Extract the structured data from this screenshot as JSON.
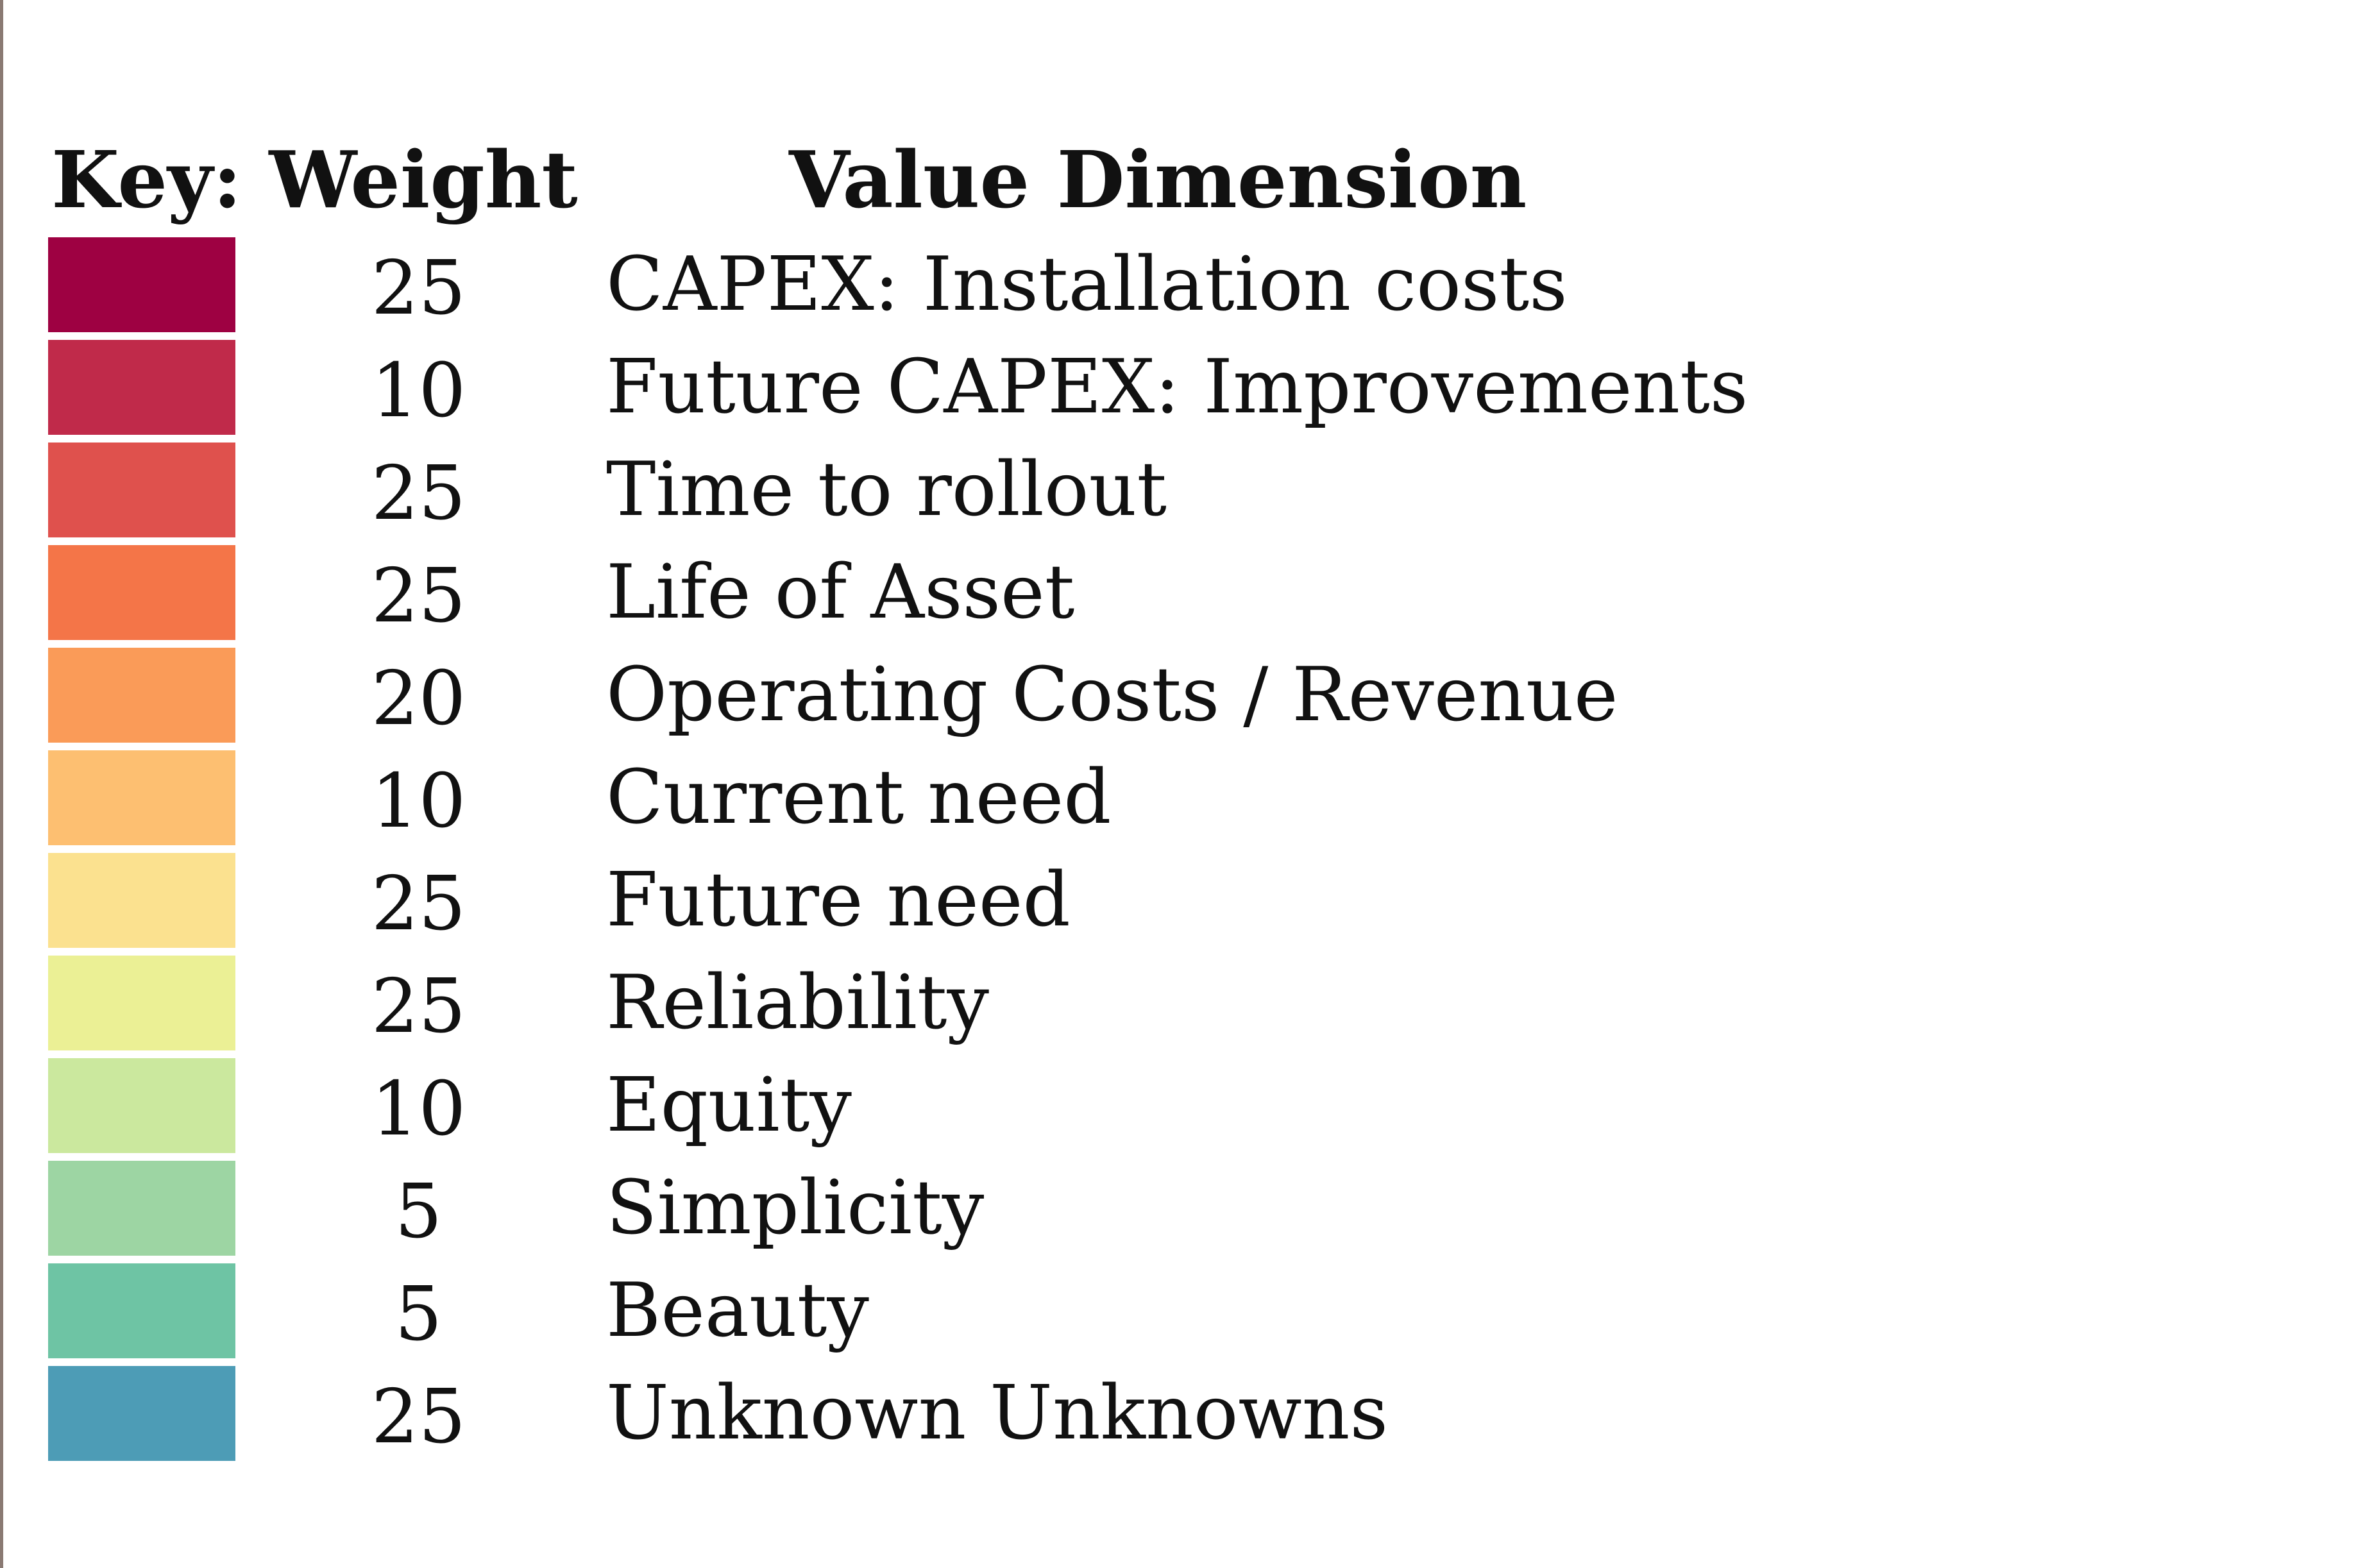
{
  "header": {
    "key_weight": "Key: Weight",
    "value_dimension": "Value Dimension"
  },
  "rows": [
    {
      "color": "#9e0142",
      "weight": "25",
      "dimension": "CAPEX: Installation costs"
    },
    {
      "color": "#c02a4a",
      "weight": "10",
      "dimension": "Future CAPEX: Improvements"
    },
    {
      "color": "#df514d",
      "weight": "25",
      "dimension": "Time to rollout"
    },
    {
      "color": "#f47548",
      "weight": "25",
      "dimension": "Life of Asset"
    },
    {
      "color": "#fa9b58",
      "weight": "20",
      "dimension": "Operating Costs / Revenue"
    },
    {
      "color": "#fdbf71",
      "weight": "10",
      "dimension": "Current need"
    },
    {
      "color": "#fbe18f",
      "weight": "25",
      "dimension": "Future need"
    },
    {
      "color": "#ebf095",
      "weight": "25",
      "dimension": "Reliability"
    },
    {
      "color": "#cbe89e",
      "weight": "10",
      "dimension": "Equity"
    },
    {
      "color": "#9dd5a3",
      "weight": "5",
      "dimension": "Simplicity"
    },
    {
      "color": "#6ec4a4",
      "weight": "5",
      "dimension": "Beauty"
    },
    {
      "color": "#4d9cb6",
      "weight": "25",
      "dimension": "Unknown Unknowns"
    }
  ]
}
